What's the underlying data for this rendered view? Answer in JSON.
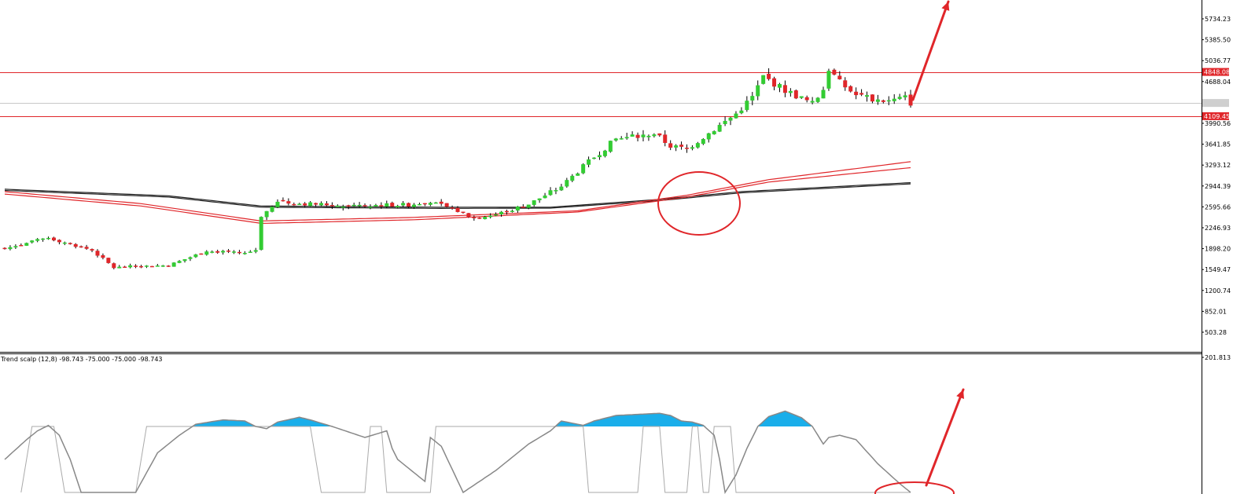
{
  "chart_data": [
    {
      "type": "candlestick",
      "price_axis": {
        "labels": [
          "5734.23",
          "5385.50",
          "5036.77",
          "4688.04",
          "3990.56",
          "3641.85",
          "3293.12",
          "2944.39",
          "2595.66",
          "2246.93",
          "1898.20",
          "1549.47",
          "1200.74",
          "852.01",
          "503.28"
        ],
        "ylim": [
          200,
          6000
        ]
      },
      "levels": [
        {
          "price": 4848.08,
          "label": "4848.08",
          "color": "#e0262a"
        },
        {
          "price": 4109.45,
          "label": "4109.45",
          "color": "#e0262a"
        }
      ],
      "current_price": 4330,
      "colors": {
        "bull": "#33cc33",
        "bear": "#e0262a",
        "ma_black": "#222222",
        "ma_red": "#e0262a",
        "annotation": "#e0262a"
      },
      "close_anchors": [
        [
          0,
          1900
        ],
        [
          8,
          2080
        ],
        [
          16,
          1870
        ],
        [
          20,
          1580
        ],
        [
          23,
          1600
        ],
        [
          30,
          1620
        ],
        [
          37,
          1860
        ],
        [
          44,
          1820
        ],
        [
          46,
          1880
        ],
        [
          47,
          2450
        ],
        [
          50,
          2670
        ],
        [
          62,
          2620
        ],
        [
          74,
          2630
        ],
        [
          78,
          2690
        ],
        [
          82,
          2560
        ],
        [
          86,
          2410
        ],
        [
          90,
          2470
        ],
        [
          96,
          2640
        ],
        [
          102,
          2940
        ],
        [
          107,
          3350
        ],
        [
          112,
          3730
        ],
        [
          119,
          3820
        ],
        [
          122,
          3610
        ],
        [
          125,
          3560
        ],
        [
          128,
          3760
        ],
        [
          134,
          4150
        ],
        [
          137,
          4430
        ],
        [
          139,
          4770
        ],
        [
          143,
          4540
        ],
        [
          148,
          4320
        ],
        [
          150,
          4560
        ],
        [
          151,
          4900
        ],
        [
          153,
          4670
        ],
        [
          156,
          4460
        ],
        [
          159,
          4390
        ],
        [
          162,
          4360
        ],
        [
          165,
          4420
        ],
        [
          166,
          4330
        ]
      ],
      "moving_averages": [
        {
          "color": "#222222",
          "points": [
            [
              0,
              2890
            ],
            [
              30,
              2780
            ],
            [
              47,
              2610
            ],
            [
              80,
              2590
            ],
            [
              100,
              2590
            ],
            [
              120,
              2720
            ],
            [
              135,
              2850
            ],
            [
              166,
              3000
            ]
          ]
        },
        {
          "color": "#222222",
          "points": [
            [
              0,
              2870
            ],
            [
              30,
              2760
            ],
            [
              47,
              2590
            ],
            [
              80,
              2570
            ],
            [
              100,
              2575
            ],
            [
              120,
              2700
            ],
            [
              135,
              2830
            ],
            [
              166,
              2980
            ]
          ]
        },
        {
          "color": "#e0262a",
          "points": [
            [
              0,
              2850
            ],
            [
              25,
              2650
            ],
            [
              47,
              2360
            ],
            [
              75,
              2420
            ],
            [
              105,
              2530
            ],
            [
              125,
              2790
            ],
            [
              140,
              3050
            ],
            [
              166,
              3350
            ]
          ]
        },
        {
          "color": "#e0262a",
          "points": [
            [
              0,
              2810
            ],
            [
              25,
              2610
            ],
            [
              47,
              2320
            ],
            [
              75,
              2380
            ],
            [
              105,
              2510
            ],
            [
              125,
              2760
            ],
            [
              140,
              3010
            ],
            [
              166,
              3250
            ]
          ]
        }
      ]
    },
    {
      "type": "area",
      "title": "Trend scalp (12,8) -98.743 -75.000 -75.000 -98.743",
      "axis_top_label": "201.813",
      "colors": {
        "fill": "#1aaeea",
        "line": "#888888",
        "step": "#aaaaaa"
      },
      "osc_anchors": [
        [
          0,
          -150
        ],
        [
          4,
          -60
        ],
        [
          6,
          -20
        ],
        [
          8,
          5
        ],
        [
          10,
          -40
        ],
        [
          12,
          -150
        ],
        [
          14,
          -300
        ],
        [
          24,
          -300
        ],
        [
          28,
          -120
        ],
        [
          32,
          -40
        ],
        [
          35,
          10
        ],
        [
          40,
          30
        ],
        [
          44,
          25
        ],
        [
          46,
          0
        ],
        [
          48,
          -10
        ],
        [
          50,
          20
        ],
        [
          54,
          42
        ],
        [
          56,
          30
        ],
        [
          60,
          0
        ],
        [
          66,
          -50
        ],
        [
          70,
          -20
        ],
        [
          71,
          -100
        ],
        [
          72,
          -150
        ],
        [
          77,
          -250
        ],
        [
          78,
          -50
        ],
        [
          80,
          -90
        ],
        [
          84,
          -300
        ],
        [
          90,
          -200
        ],
        [
          96,
          -80
        ],
        [
          100,
          -20
        ],
        [
          102,
          25
        ],
        [
          104,
          15
        ],
        [
          106,
          5
        ],
        [
          108,
          25
        ],
        [
          112,
          50
        ],
        [
          116,
          55
        ],
        [
          120,
          60
        ],
        [
          122,
          50
        ],
        [
          124,
          25
        ],
        [
          126,
          20
        ],
        [
          128,
          5
        ],
        [
          130,
          -40
        ],
        [
          131,
          -150
        ],
        [
          132,
          -300
        ],
        [
          134,
          -220
        ],
        [
          136,
          -100
        ],
        [
          138,
          0
        ],
        [
          140,
          45
        ],
        [
          143,
          70
        ],
        [
          146,
          40
        ],
        [
          148,
          0
        ],
        [
          150,
          -80
        ],
        [
          151,
          -50
        ],
        [
          153,
          -40
        ],
        [
          156,
          -60
        ],
        [
          160,
          -170
        ],
        [
          164,
          -260
        ],
        [
          166,
          -300
        ]
      ],
      "step_anchors": [
        [
          3,
          -300
        ],
        [
          5,
          0
        ],
        [
          9,
          0
        ],
        [
          11,
          -300
        ],
        [
          24,
          -300
        ],
        [
          26,
          0
        ],
        [
          56,
          0
        ],
        [
          58,
          -300
        ],
        [
          66,
          -300
        ],
        [
          67,
          0
        ],
        [
          69,
          0
        ],
        [
          70,
          -300
        ],
        [
          78,
          -300
        ],
        [
          79,
          0
        ],
        [
          106,
          0
        ],
        [
          107,
          -300
        ],
        [
          116,
          -300
        ],
        [
          117,
          0
        ],
        [
          120,
          0
        ],
        [
          121,
          -300
        ],
        [
          125,
          -300
        ],
        [
          126,
          0
        ],
        [
          127,
          0
        ],
        [
          128,
          -300
        ],
        [
          129,
          -300
        ],
        [
          130,
          0
        ],
        [
          133,
          0
        ],
        [
          134,
          -300
        ],
        [
          166,
          -300
        ]
      ],
      "zero_level": 0,
      "ylim": [
        -320,
        160
      ]
    }
  ]
}
